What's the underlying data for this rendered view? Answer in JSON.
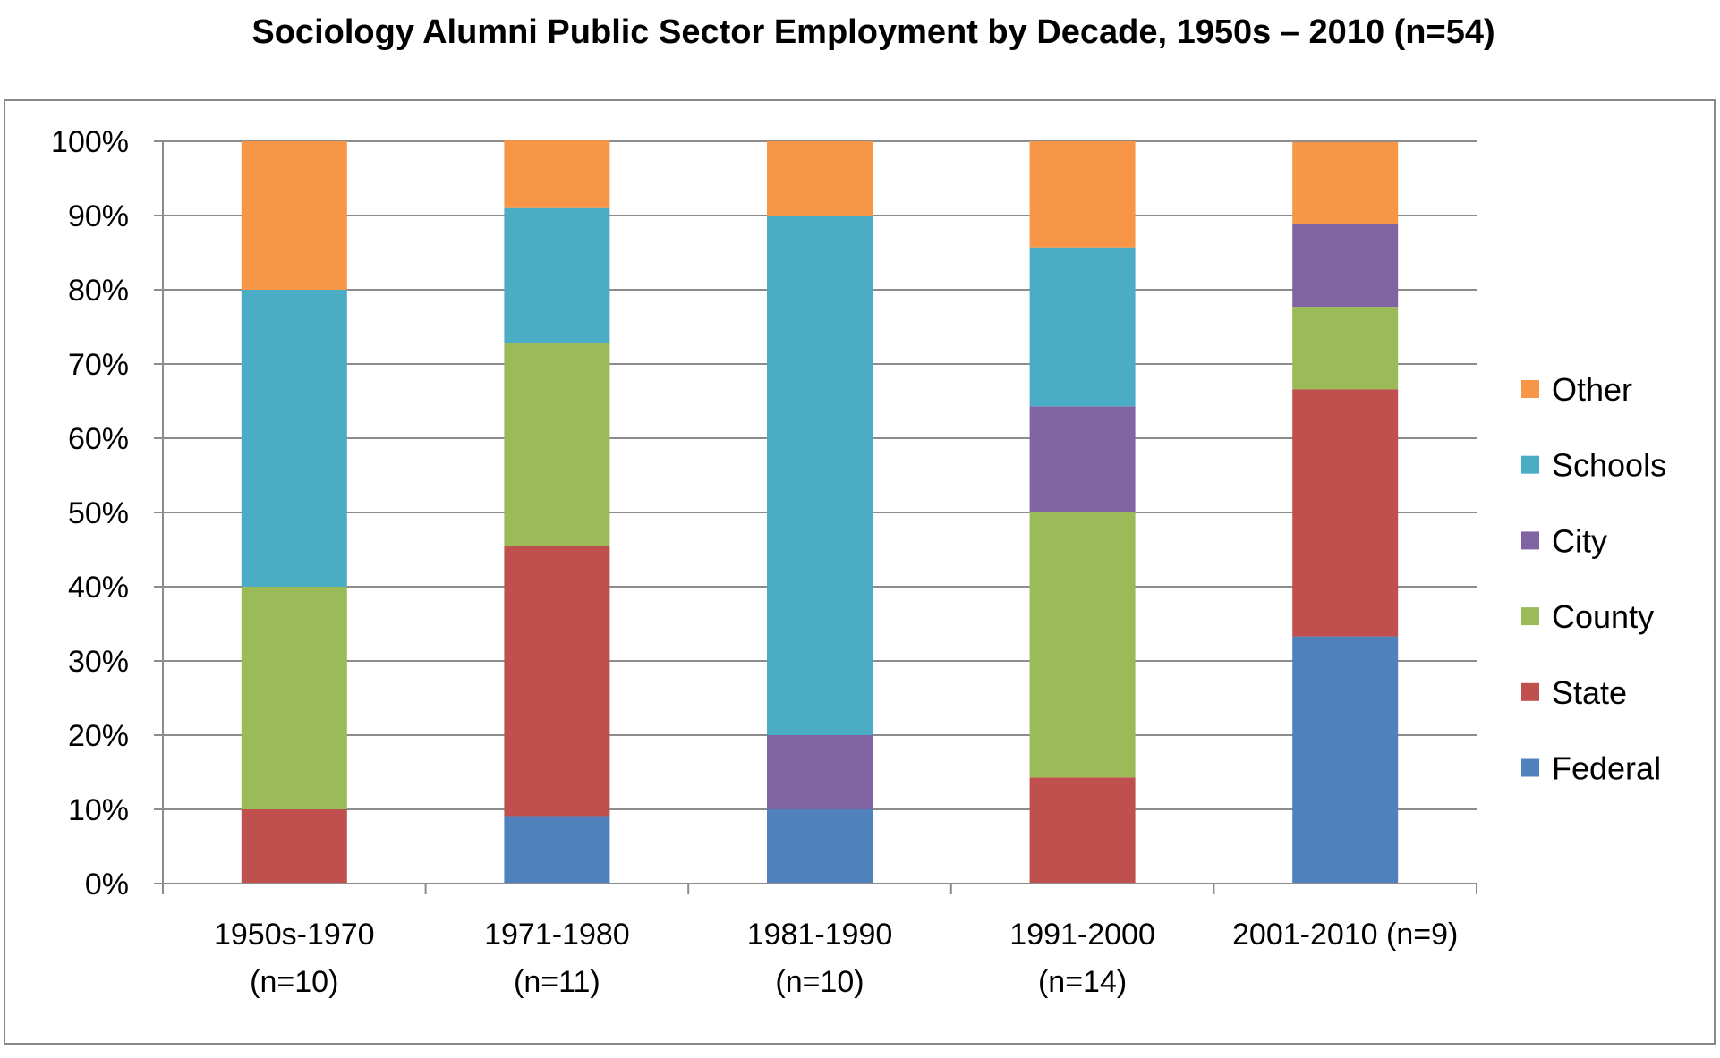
{
  "chart_data": {
    "type": "bar",
    "stacked": true,
    "title": "Sociology Alumni Public Sector Employment by Decade, 1950s – 2010 (n=54)",
    "xlabel": "",
    "ylabel": "",
    "categories": [
      [
        "1950s-1970",
        "(n=10)"
      ],
      [
        "1971-1980",
        "(n=11)"
      ],
      [
        "1981-1990",
        "(n=10)"
      ],
      [
        "1991-2000",
        "(n=14)"
      ],
      [
        "2001-2010 (n=9)"
      ]
    ],
    "ylim": [
      0,
      100
    ],
    "yticks": [
      "0%",
      "10%",
      "20%",
      "30%",
      "40%",
      "50%",
      "60%",
      "70%",
      "80%",
      "90%",
      "100%"
    ],
    "grid": true,
    "legend_position": "right",
    "series": [
      {
        "name": "Federal",
        "color": "#4F81BD",
        "values": [
          0,
          9.1,
          10,
          0,
          33.3
        ]
      },
      {
        "name": "State",
        "color": "#C0504D",
        "values": [
          10,
          36.4,
          0,
          14.3,
          33.3
        ]
      },
      {
        "name": "County",
        "color": "#9BBB59",
        "values": [
          30,
          27.3,
          0,
          35.7,
          11.1
        ]
      },
      {
        "name": "City",
        "color": "#8064A2",
        "values": [
          0,
          0,
          10,
          14.3,
          11.1
        ]
      },
      {
        "name": "Schools",
        "color": "#4BACC6",
        "values": [
          40,
          18.2,
          70,
          21.4,
          0
        ]
      },
      {
        "name": "Other",
        "color": "#F79646",
        "values": [
          20,
          9.1,
          10,
          14.3,
          11.1
        ]
      }
    ]
  }
}
